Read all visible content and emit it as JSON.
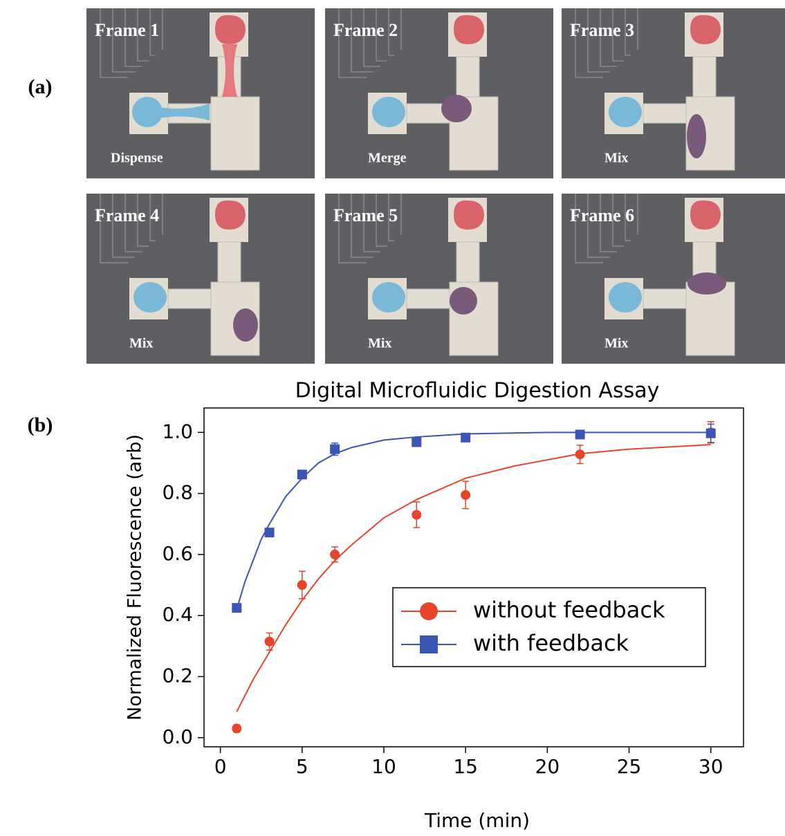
{
  "panel_a": {
    "label": "(a)",
    "frames": [
      {
        "title": "Frame 1",
        "caption": "Dispense"
      },
      {
        "title": "Frame 2",
        "caption": "Merge"
      },
      {
        "title": "Frame 3",
        "caption": "Mix"
      },
      {
        "title": "Frame 4",
        "caption": "Mix"
      },
      {
        "title": "Frame 5",
        "caption": "Mix"
      },
      {
        "title": "Frame 6",
        "caption": "Mix"
      }
    ]
  },
  "panel_b": {
    "label": "(b)"
  },
  "chart_data": {
    "type": "scatter",
    "title": "Digital Microfluidic Digestion Assay",
    "x_label": "Time (min)",
    "y_label": "Normalized Fluorescence (arb)",
    "x": [
      1,
      3,
      5,
      7,
      12,
      15,
      22,
      30
    ],
    "series": [
      {
        "name": "without feedback",
        "color": "#e8442c",
        "marker": "circle",
        "values": [
          0.03,
          0.315,
          0.5,
          0.6,
          0.73,
          0.795,
          0.928,
          1.0
        ],
        "errors": [
          0.012,
          0.028,
          0.045,
          0.025,
          0.042,
          0.045,
          0.03,
          0.035
        ],
        "fit_x": [
          1,
          2,
          3,
          4,
          5,
          6,
          7,
          8,
          10,
          12,
          15,
          18,
          22,
          25,
          30
        ],
        "fit_values": [
          0.085,
          0.19,
          0.28,
          0.37,
          0.45,
          0.52,
          0.58,
          0.63,
          0.72,
          0.78,
          0.85,
          0.89,
          0.93,
          0.945,
          0.96
        ]
      },
      {
        "name": "with feedback",
        "color": "#3a55b4",
        "marker": "square",
        "values": [
          0.425,
          0.672,
          0.862,
          0.945,
          0.968,
          0.983,
          0.993,
          0.997
        ],
        "errors": [
          0.005,
          0.008,
          0.008,
          0.02,
          0.01,
          0.008,
          0.005,
          0.03
        ],
        "fit_x": [
          1,
          1.5,
          2,
          2.5,
          3,
          4,
          5,
          6,
          7,
          8,
          10,
          12,
          15,
          20,
          25,
          30
        ],
        "fit_values": [
          0.42,
          0.51,
          0.58,
          0.65,
          0.7,
          0.79,
          0.85,
          0.9,
          0.93,
          0.95,
          0.975,
          0.985,
          0.995,
          1.0,
          1.0,
          1.0
        ]
      }
    ],
    "xlim": [
      -1,
      32
    ],
    "ylim": [
      -0.03,
      1.08
    ],
    "xticks": [
      0,
      5,
      10,
      15,
      20,
      25,
      30
    ],
    "yticks": [
      {
        "value": 0,
        "label": "0.0"
      },
      0.2,
      0.4,
      0.6,
      0.8,
      {
        "value": 1,
        "label": "1.0"
      }
    ],
    "legend": "lower-right"
  }
}
